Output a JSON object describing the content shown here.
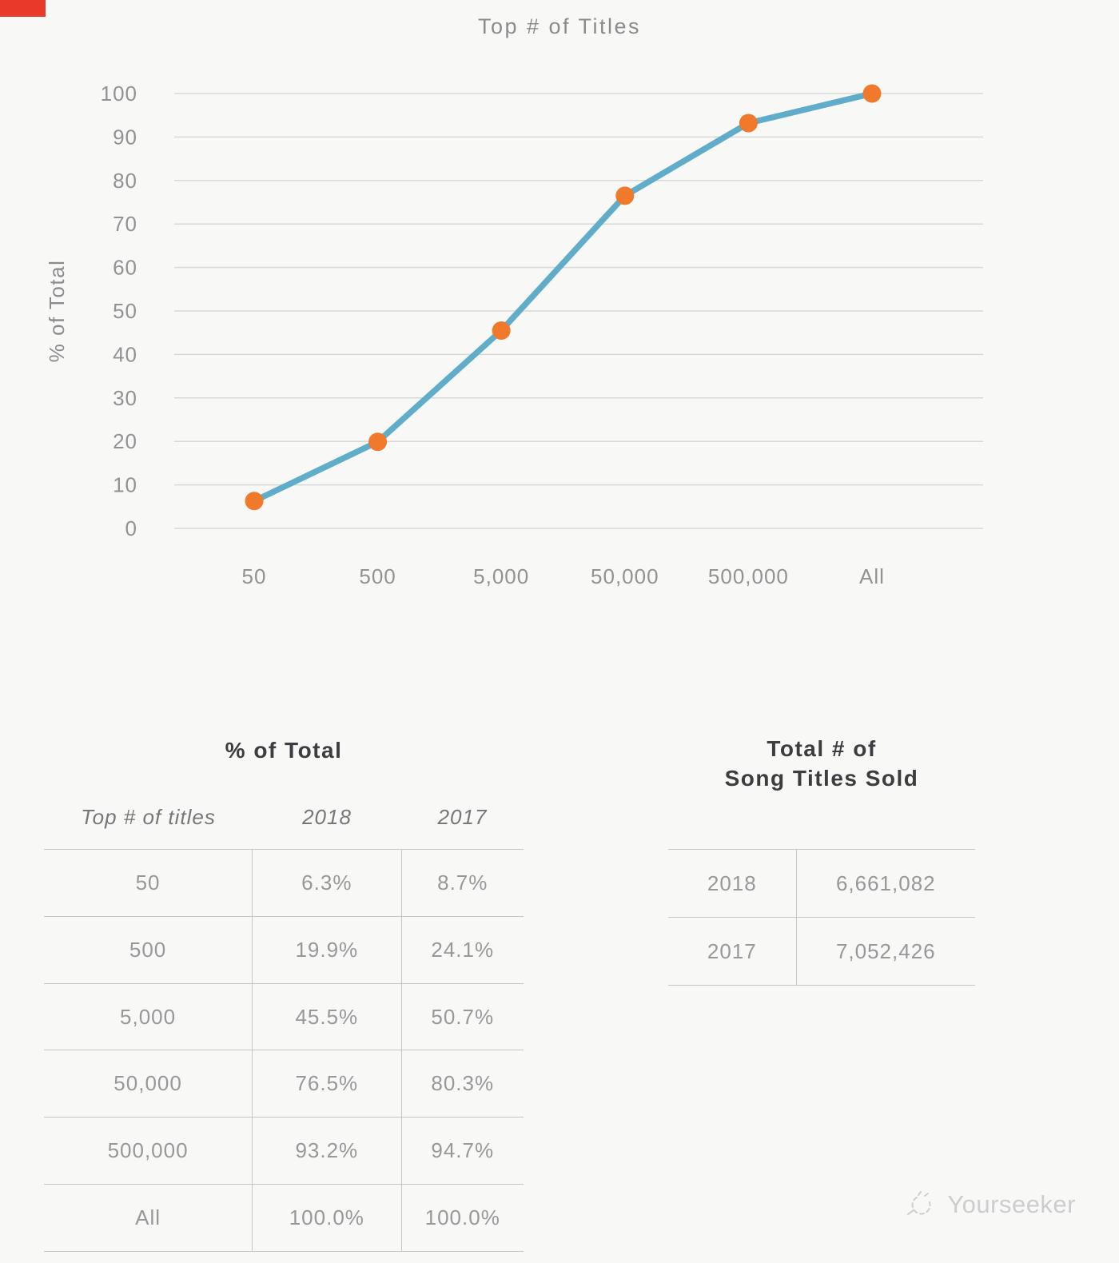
{
  "corner_mark": {
    "color": "#e8392b"
  },
  "chart_data": {
    "type": "line",
    "title": "Top # of Titles",
    "ylabel": "% of Total",
    "x_categories": [
      "50",
      "500",
      "5,000",
      "50,000",
      "500,000",
      "All"
    ],
    "series": [
      {
        "name": "2018",
        "values": [
          6.3,
          19.9,
          45.5,
          76.5,
          93.2,
          100.0
        ]
      }
    ],
    "ylim": [
      0,
      100
    ],
    "ytick_step": 10,
    "grid": true,
    "legend": "none",
    "line_color": "#5fadc9",
    "marker_color": "#f0792c",
    "grid_color": "#d8d8d6",
    "tick_text_color": "#919294"
  },
  "tables": {
    "percent": {
      "title": "% of Total",
      "columns": [
        "Top # of titles",
        "2018",
        "2017"
      ],
      "rows": [
        [
          "50",
          "6.3%",
          "8.7%"
        ],
        [
          "500",
          "19.9%",
          "24.1%"
        ],
        [
          "5,000",
          "45.5%",
          "50.7%"
        ],
        [
          "50,000",
          "76.5%",
          "80.3%"
        ],
        [
          "500,000",
          "93.2%",
          "94.7%"
        ],
        [
          "All",
          "100.0%",
          "100.0%"
        ]
      ]
    },
    "totals": {
      "title_line1": "Total # of",
      "title_line2": "Song Titles Sold",
      "rows": [
        [
          "2018",
          "6,661,082"
        ],
        [
          "2017",
          "7,052,426"
        ]
      ]
    }
  },
  "watermark": {
    "text": "Yourseeker"
  }
}
